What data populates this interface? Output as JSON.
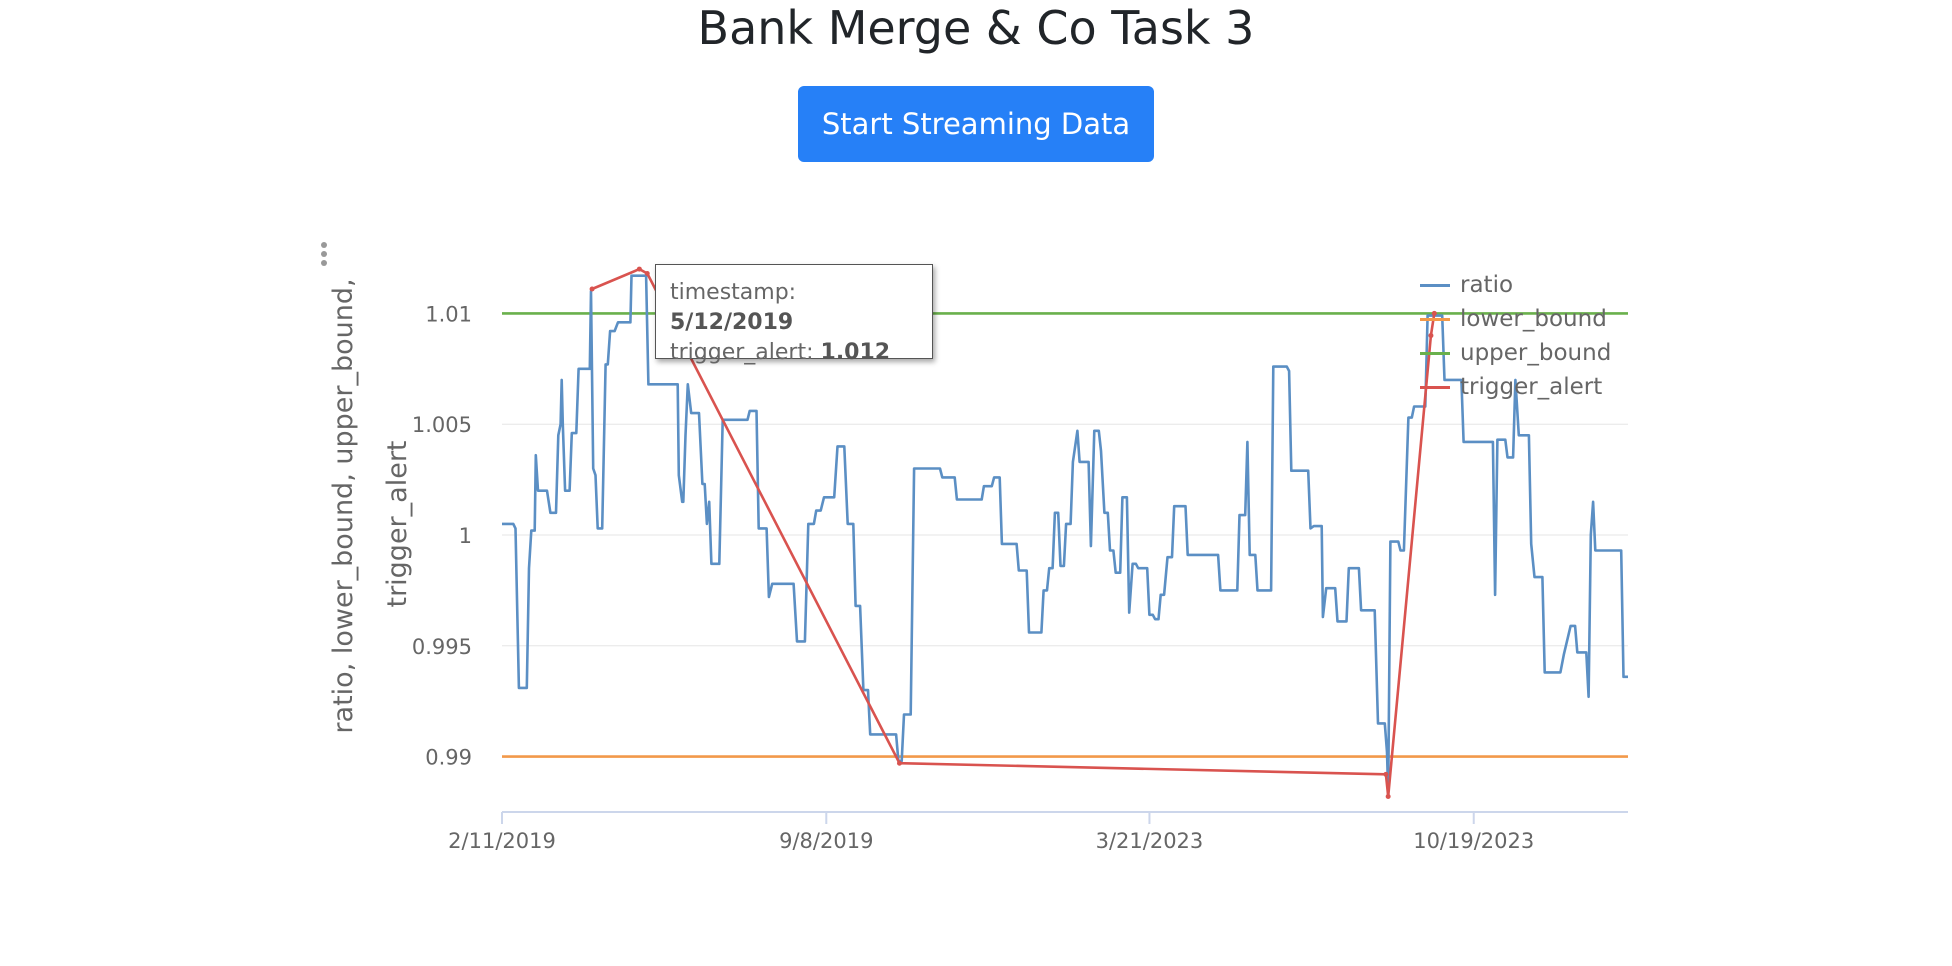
{
  "page": {
    "title": "Bank Merge & Co Task 3",
    "stream_button_label": "Start Streaming Data"
  },
  "tooltip": {
    "timestamp_label": "timestamp:",
    "timestamp_value": "5/12/2019",
    "series_label": "trigger_alert:",
    "series_value": "1.012"
  },
  "legend": [
    {
      "name": "ratio",
      "color": "#5b8fc4"
    },
    {
      "name": "lower_bound",
      "color": "#f2994a"
    },
    {
      "name": "upper_bound",
      "color": "#6ab04c"
    },
    {
      "name": "trigger_alert",
      "color": "#d9534f"
    }
  ],
  "chart_data": {
    "type": "line",
    "ylabel": "ratio, lower_bound, upper_bound, trigger_alert",
    "xlabel": "",
    "ylim": [
      0.9875,
      1.0125
    ],
    "yticks": [
      0.99,
      0.995,
      1,
      1.005,
      1.01
    ],
    "yticklabels": [
      "0.99",
      "0.995",
      "1",
      "1.005",
      "1.01"
    ],
    "xticklabels": [
      "2/11/2019",
      "9/8/2019",
      "3/21/2023",
      "10/19/2023"
    ],
    "xlim": [
      0,
      100
    ],
    "xtick_positions": [
      0,
      28.8,
      57.5,
      86.3
    ],
    "grid": true,
    "legend_position": "top-right",
    "series": [
      {
        "name": "ratio",
        "color": "#5b8fc4",
        "points": [
          [
            0,
            1.0005
          ],
          [
            1,
            1.0005
          ],
          [
            1.2,
            1.0003
          ],
          [
            1.5,
            0.9931
          ],
          [
            2.2,
            0.9931
          ],
          [
            2.4,
            0.9985
          ],
          [
            2.6,
            1.0002
          ],
          [
            2.9,
            1.0002
          ],
          [
            3,
            1.0036
          ],
          [
            3.2,
            1.002
          ],
          [
            4,
            1.002
          ],
          [
            4.3,
            1.001
          ],
          [
            4.8,
            1.001
          ],
          [
            5,
            1.0045
          ],
          [
            5.2,
            1.005
          ],
          [
            5.3,
            1.007
          ],
          [
            5.4,
            1.005
          ],
          [
            5.6,
            1.002
          ],
          [
            6,
            1.002
          ],
          [
            6.2,
            1.0046
          ],
          [
            6.6,
            1.0046
          ],
          [
            6.8,
            1.0075
          ],
          [
            7.8,
            1.0075
          ],
          [
            7.9,
            1.011
          ],
          [
            8.1,
            1.003
          ],
          [
            8.3,
            1.0027
          ],
          [
            8.5,
            1.0003
          ],
          [
            8.9,
            1.0003
          ],
          [
            9.2,
            1.0077
          ],
          [
            9.4,
            1.0077
          ],
          [
            9.6,
            1.0092
          ],
          [
            10,
            1.0092
          ],
          [
            10.3,
            1.0096
          ],
          [
            11.4,
            1.0096
          ],
          [
            11.5,
            1.0117
          ],
          [
            12.8,
            1.0117
          ],
          [
            13,
            1.0068
          ],
          [
            15.6,
            1.0068
          ],
          [
            15.7,
            1.0027
          ],
          [
            16,
            1.0015
          ],
          [
            16.1,
            1.0015
          ],
          [
            16.3,
            1.0045
          ],
          [
            16.5,
            1.0068
          ],
          [
            16.8,
            1.0055
          ],
          [
            17.5,
            1.0055
          ],
          [
            17.8,
            1.0023
          ],
          [
            18,
            1.0023
          ],
          [
            18.2,
            1.0005
          ],
          [
            18.4,
            1.0015
          ],
          [
            18.6,
            0.9987
          ],
          [
            19.3,
            0.9987
          ],
          [
            19.6,
            1.0052
          ],
          [
            21.8,
            1.0052
          ],
          [
            22,
            1.0056
          ],
          [
            22.6,
            1.0056
          ],
          [
            22.8,
            1.0003
          ],
          [
            23.5,
            1.0003
          ],
          [
            23.7,
            0.9972
          ],
          [
            24,
            0.9978
          ],
          [
            25.9,
            0.9978
          ],
          [
            26.2,
            0.9952
          ],
          [
            26.9,
            0.9952
          ],
          [
            27.2,
            1.0005
          ],
          [
            27.7,
            1.0005
          ],
          [
            27.9,
            1.0011
          ],
          [
            28.3,
            1.0011
          ],
          [
            28.6,
            1.0017
          ],
          [
            29.5,
            1.0017
          ],
          [
            29.8,
            1.004
          ],
          [
            30.4,
            1.004
          ],
          [
            30.7,
            1.0005
          ],
          [
            31.2,
            1.0005
          ],
          [
            31.4,
            0.9968
          ],
          [
            31.8,
            0.9968
          ],
          [
            32.1,
            0.993
          ],
          [
            32.5,
            0.993
          ],
          [
            32.7,
            0.991
          ],
          [
            35,
            0.991
          ],
          [
            35.2,
            0.9898
          ],
          [
            35.5,
            0.9898
          ],
          [
            35.7,
            0.9919
          ],
          [
            36.3,
            0.9919
          ],
          [
            36.6,
            1.003
          ],
          [
            38.9,
            1.003
          ],
          [
            39.1,
            1.0026
          ],
          [
            40.2,
            1.0026
          ],
          [
            40.4,
            1.0016
          ],
          [
            42.6,
            1.0016
          ],
          [
            42.8,
            1.0022
          ],
          [
            43.5,
            1.0022
          ],
          [
            43.7,
            1.0026
          ],
          [
            44.2,
            1.0026
          ],
          [
            44.4,
            0.9996
          ],
          [
            45.7,
            0.9996
          ],
          [
            45.9,
            0.9984
          ],
          [
            46.6,
            0.9984
          ],
          [
            46.8,
            0.9956
          ],
          [
            47.9,
            0.9956
          ],
          [
            48.1,
            0.9975
          ],
          [
            48.4,
            0.9975
          ],
          [
            48.6,
            0.9985
          ],
          [
            48.9,
            0.9985
          ],
          [
            49.1,
            1.001
          ],
          [
            49.4,
            1.001
          ],
          [
            49.6,
            0.9986
          ],
          [
            49.9,
            0.9986
          ],
          [
            50.1,
            1.0005
          ],
          [
            50.5,
            1.0005
          ],
          [
            50.7,
            1.0033
          ],
          [
            51.1,
            1.0047
          ],
          [
            51.3,
            1.0033
          ],
          [
            52.1,
            1.0033
          ],
          [
            52.3,
            0.9995
          ],
          [
            52.6,
            1.0047
          ],
          [
            53,
            1.0047
          ],
          [
            53.2,
            1.0038
          ],
          [
            53.5,
            1.001
          ],
          [
            53.8,
            1.001
          ],
          [
            54,
            0.9993
          ],
          [
            54.3,
            0.9993
          ],
          [
            54.5,
            0.9983
          ],
          [
            54.9,
            0.9983
          ],
          [
            55.1,
            1.0017
          ],
          [
            55.5,
            1.0017
          ],
          [
            55.7,
            0.9965
          ],
          [
            56,
            0.9987
          ],
          [
            56.3,
            0.9987
          ],
          [
            56.5,
            0.9985
          ],
          [
            57.3,
            0.9985
          ],
          [
            57.5,
            0.9964
          ],
          [
            57.8,
            0.9964
          ],
          [
            58,
            0.9962
          ],
          [
            58.3,
            0.9962
          ],
          [
            58.5,
            0.9973
          ],
          [
            58.8,
            0.9973
          ],
          [
            59.1,
            0.999
          ],
          [
            59.5,
            0.999
          ],
          [
            59.7,
            1.0013
          ],
          [
            60.7,
            1.0013
          ],
          [
            60.9,
            0.9991
          ],
          [
            63.6,
            0.9991
          ],
          [
            63.8,
            0.9975
          ],
          [
            65.3,
            0.9975
          ],
          [
            65.5,
            1.0009
          ],
          [
            66,
            1.0009
          ],
          [
            66.2,
            1.0042
          ],
          [
            66.4,
            0.9991
          ],
          [
            66.9,
            0.9991
          ],
          [
            67.1,
            0.9975
          ],
          [
            67.5,
            0.9975
          ],
          [
            67.7,
            0.9975
          ],
          [
            68.3,
            0.9975
          ],
          [
            68.5,
            1.0076
          ],
          [
            69.7,
            1.0076
          ],
          [
            69.9,
            1.0074
          ],
          [
            70.1,
            1.0029
          ],
          [
            71.6,
            1.0029
          ],
          [
            71.8,
            1.0003
          ],
          [
            72.1,
            1.0004
          ],
          [
            72.8,
            1.0004
          ],
          [
            72.9,
            0.9963
          ],
          [
            73.2,
            0.9976
          ],
          [
            74,
            0.9976
          ],
          [
            74.2,
            0.9961
          ],
          [
            75,
            0.9961
          ],
          [
            75.2,
            0.9985
          ],
          [
            76.1,
            0.9985
          ],
          [
            76.3,
            0.9966
          ],
          [
            77.5,
            0.9966
          ],
          [
            77.8,
            0.9915
          ],
          [
            78.4,
            0.9915
          ],
          [
            78.6,
            0.9902
          ],
          [
            78.7,
            0.9883
          ],
          [
            78.9,
            0.9997
          ],
          [
            79.6,
            0.9997
          ],
          [
            79.8,
            0.9993
          ],
          [
            80.1,
            0.9993
          ],
          [
            80.5,
            1.0053
          ],
          [
            80.8,
            1.0053
          ],
          [
            81,
            1.0058
          ],
          [
            81.5,
            1.0058
          ],
          [
            81.6,
            1.0058
          ],
          [
            82,
            1.0058
          ],
          [
            82.2,
            1.0099
          ],
          [
            83.5,
            1.0099
          ],
          [
            83.7,
            1.007
          ],
          [
            85.2,
            1.007
          ],
          [
            85.4,
            1.0042
          ],
          [
            88,
            1.0042
          ],
          [
            88.2,
            0.9973
          ],
          [
            88.4,
            1.0043
          ],
          [
            89.1,
            1.0043
          ],
          [
            89.3,
            1.0035
          ],
          [
            89.8,
            1.0035
          ],
          [
            90,
            1.007
          ],
          [
            90.3,
            1.0045
          ],
          [
            91.2,
            1.0045
          ],
          [
            91.4,
            0.9996
          ],
          [
            91.7,
            0.9981
          ],
          [
            92.4,
            0.9981
          ],
          [
            92.6,
            0.9938
          ],
          [
            94,
            0.9938
          ],
          [
            94.3,
            0.9946
          ],
          [
            94.9,
            0.9959
          ],
          [
            95.3,
            0.9959
          ],
          [
            95.5,
            0.9947
          ],
          [
            96.3,
            0.9947
          ],
          [
            96.5,
            0.9927
          ],
          [
            96.7,
            1.0
          ],
          [
            96.9,
            1.0015
          ],
          [
            97.1,
            0.9993
          ],
          [
            99.4,
            0.9993
          ],
          [
            99.6,
            0.9936
          ],
          [
            100,
            0.9936
          ]
        ]
      },
      {
        "name": "lower_bound",
        "color": "#f2994a",
        "points": [
          [
            0,
            0.99
          ],
          [
            100,
            0.99
          ]
        ]
      },
      {
        "name": "upper_bound",
        "color": "#6ab04c",
        "points": [
          [
            0,
            1.01
          ],
          [
            100,
            1.01
          ]
        ]
      },
      {
        "name": "trigger_alert",
        "color": "#d9534f",
        "points": [
          [
            8,
            1.0111
          ],
          [
            12.2,
            1.012
          ],
          [
            12.9,
            1.0118
          ],
          [
            35.3,
            0.9897
          ],
          [
            78.5,
            0.9892
          ],
          [
            78.7,
            0.9882
          ],
          [
            82.5,
            1.009
          ],
          [
            82.8,
            1.01
          ]
        ]
      }
    ]
  }
}
